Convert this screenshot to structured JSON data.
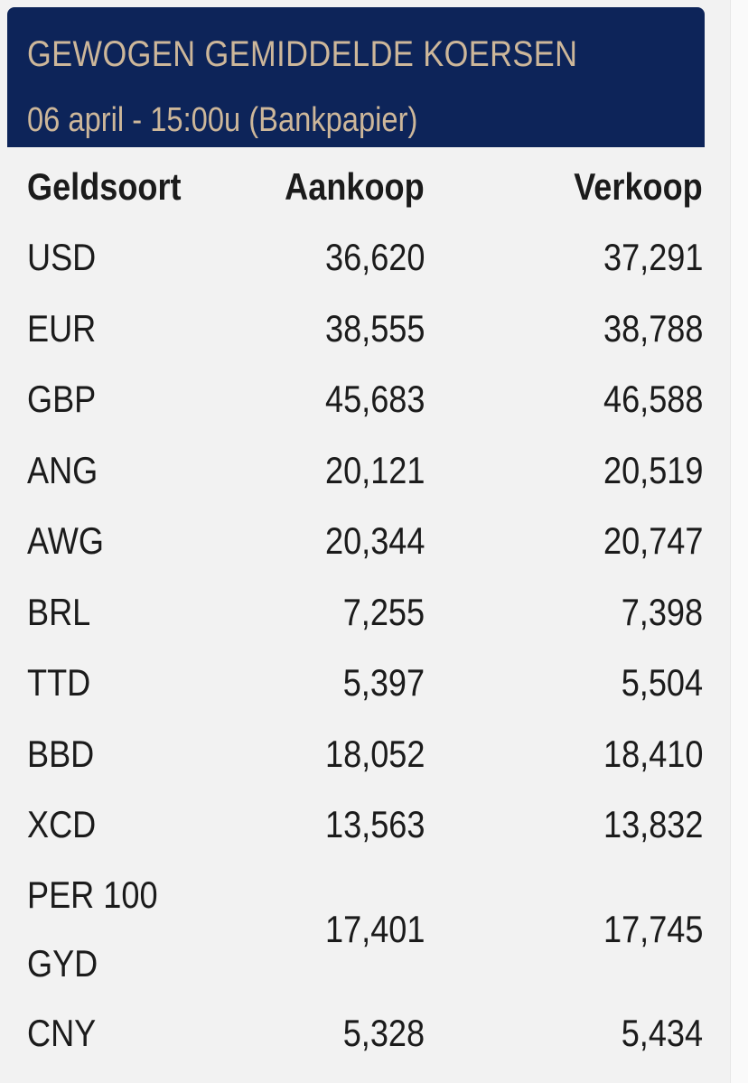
{
  "header": {
    "title": "GEWOGEN GEMIDDELDE KOERSEN",
    "subtitle": "06 april - 15:00u (Bankpapier)"
  },
  "table": {
    "columns": [
      "Geldsoort",
      "Aankoop",
      "Verkoop"
    ],
    "rows": [
      {
        "currency": "USD",
        "buy": "36,620",
        "sell": "37,291"
      },
      {
        "currency": "EUR",
        "buy": "38,555",
        "sell": "38,788"
      },
      {
        "currency": "GBP",
        "buy": "45,683",
        "sell": "46,588"
      },
      {
        "currency": "ANG",
        "buy": "20,121",
        "sell": "20,519"
      },
      {
        "currency": "AWG",
        "buy": "20,344",
        "sell": "20,747"
      },
      {
        "currency": "BRL",
        "buy": "7,255",
        "sell": "7,398"
      },
      {
        "currency": "TTD",
        "buy": "5,397",
        "sell": "5,504"
      },
      {
        "currency": "BBD",
        "buy": "18,052",
        "sell": "18,410"
      },
      {
        "currency": "XCD",
        "buy": "13,563",
        "sell": "13,832"
      },
      {
        "currency_line1": "PER 100",
        "currency_line2": "GYD",
        "buy": "17,401",
        "sell": "17,745"
      },
      {
        "currency": "CNY",
        "buy": "5,328",
        "sell": "5,434"
      }
    ]
  },
  "colors": {
    "header_bg": "#0d2459",
    "header_text": "#cdb79a",
    "panel_bg": "#f2f2f2",
    "text": "#1b1b1b"
  }
}
